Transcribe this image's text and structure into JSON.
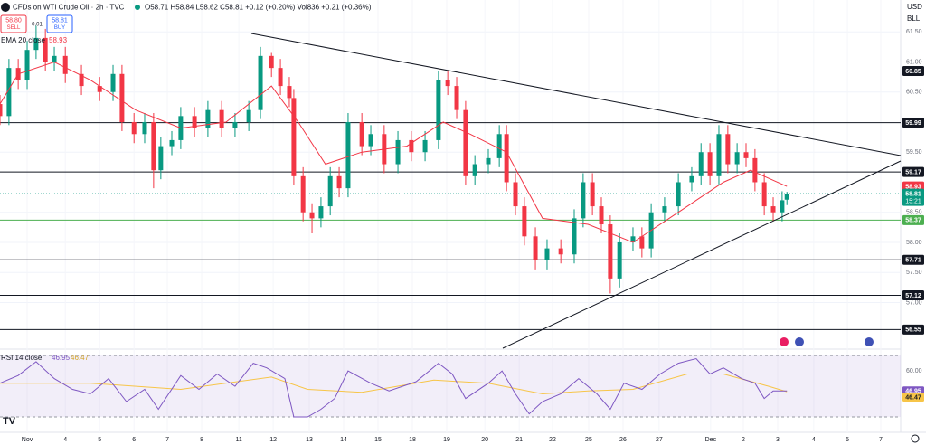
{
  "chart_data": {
    "type": "candlestick",
    "title": "CFDs on WTI Crude Oil · 2h · TVC",
    "ohlc_text": "O58.71 H58.84 L58.62 C58.81 +0.12 (+0.20%) Vol836 +0.21 (+0.36%)",
    "sell": {
      "price": "58.80",
      "label": "SELL"
    },
    "spread": "0.01",
    "buy": {
      "price": "58.81",
      "label": "BUY"
    },
    "currency": "USD",
    "unit": "BLL",
    "countdown": "15:21",
    "up_color": "#089981",
    "down_color": "#f23645",
    "candles": [
      [
        -0.79,
        60.3,
        60.45,
        59.95,
        60.1
      ],
      [
        -0.53,
        60.1,
        61.05,
        59.95,
        60.9
      ],
      [
        -0.26,
        60.9,
        61.05,
        60.55,
        60.7
      ],
      [
        0,
        60.7,
        61.35,
        60.55,
        61.2
      ],
      [
        0.26,
        61.2,
        61.6,
        61.05,
        61.4
      ],
      [
        0.53,
        61.4,
        61.55,
        60.85,
        61.0
      ],
      [
        0.79,
        61.0,
        61.25,
        60.85,
        61.1
      ],
      [
        1.11,
        61.1,
        61.25,
        60.65,
        60.8
      ],
      [
        1.58,
        60.8,
        60.95,
        60.45,
        60.6
      ],
      [
        2.11,
        60.6,
        60.75,
        60.35,
        60.5
      ],
      [
        2.5,
        60.5,
        60.95,
        60.35,
        60.8
      ],
      [
        2.76,
        60.8,
        60.95,
        59.85,
        60.0
      ],
      [
        3.11,
        60.0,
        60.15,
        59.65,
        59.8
      ],
      [
        3.42,
        59.8,
        60.15,
        59.65,
        60.0
      ],
      [
        3.68,
        60.0,
        60.15,
        58.9,
        59.2
      ],
      [
        3.89,
        59.2,
        59.75,
        59.05,
        59.6
      ],
      [
        4.21,
        59.6,
        59.85,
        59.45,
        59.7
      ],
      [
        4.47,
        59.7,
        60.25,
        59.55,
        60.1
      ],
      [
        4.87,
        60.1,
        60.25,
        59.75,
        59.9
      ],
      [
        5.26,
        59.9,
        60.35,
        59.75,
        60.2
      ],
      [
        5.66,
        60.2,
        60.35,
        59.75,
        59.9
      ],
      [
        6.05,
        59.9,
        60.15,
        59.75,
        60.0
      ],
      [
        6.45,
        60.0,
        60.35,
        59.85,
        60.2
      ],
      [
        6.79,
        60.2,
        61.25,
        60.05,
        61.1
      ],
      [
        7.11,
        61.1,
        61.15,
        60.75,
        60.9
      ],
      [
        7.37,
        60.9,
        61.05,
        60.45,
        60.6
      ],
      [
        7.63,
        60.6,
        60.75,
        60.25,
        60.4
      ],
      [
        7.76,
        60.4,
        60.55,
        58.95,
        59.1
      ],
      [
        8.03,
        59.1,
        59.25,
        58.35,
        58.5
      ],
      [
        8.29,
        58.5,
        58.65,
        58.15,
        58.4
      ],
      [
        8.55,
        58.4,
        58.75,
        58.25,
        58.6
      ],
      [
        8.82,
        58.6,
        59.25,
        58.45,
        59.1
      ],
      [
        9.08,
        59.1,
        59.25,
        58.75,
        58.9
      ],
      [
        9.34,
        58.9,
        60.15,
        58.75,
        60.0
      ],
      [
        9.74,
        60.0,
        60.15,
        59.45,
        59.6
      ],
      [
        10.0,
        59.6,
        59.95,
        59.45,
        59.8
      ],
      [
        10.39,
        59.8,
        59.95,
        59.15,
        59.3
      ],
      [
        10.79,
        59.3,
        59.85,
        59.15,
        59.7
      ],
      [
        11.18,
        59.7,
        59.85,
        59.35,
        59.5
      ],
      [
        11.58,
        59.5,
        59.85,
        59.35,
        59.7
      ],
      [
        11.97,
        59.7,
        60.85,
        59.55,
        60.7
      ],
      [
        12.24,
        60.7,
        60.85,
        60.45,
        60.6
      ],
      [
        12.5,
        60.6,
        60.75,
        60.05,
        60.2
      ],
      [
        12.76,
        60.2,
        60.35,
        58.95,
        59.1
      ],
      [
        13.03,
        59.1,
        59.45,
        58.95,
        59.3
      ],
      [
        13.42,
        59.3,
        59.55,
        59.15,
        59.4
      ],
      [
        13.74,
        59.4,
        59.95,
        59.25,
        59.8
      ],
      [
        13.95,
        59.8,
        59.95,
        58.85,
        59.0
      ],
      [
        14.21,
        59.0,
        59.15,
        58.45,
        58.6
      ],
      [
        14.47,
        58.6,
        58.75,
        57.95,
        58.1
      ],
      [
        14.79,
        58.1,
        58.25,
        57.55,
        57.7
      ],
      [
        15.13,
        57.7,
        58.05,
        57.55,
        57.9
      ],
      [
        15.53,
        57.9,
        58.05,
        57.65,
        57.8
      ],
      [
        15.92,
        57.8,
        58.55,
        57.65,
        58.4
      ],
      [
        16.18,
        58.4,
        59.15,
        58.25,
        59.0
      ],
      [
        16.45,
        59.0,
        59.15,
        58.45,
        58.6
      ],
      [
        16.71,
        58.6,
        58.75,
        58.15,
        58.3
      ],
      [
        16.97,
        58.3,
        58.45,
        57.15,
        57.4
      ],
      [
        17.24,
        57.4,
        58.15,
        57.25,
        58.0
      ],
      [
        17.63,
        58.0,
        58.25,
        57.85,
        58.1
      ],
      [
        17.89,
        58.1,
        58.25,
        57.75,
        57.9
      ],
      [
        18.16,
        57.9,
        58.65,
        57.75,
        58.5
      ],
      [
        18.55,
        58.5,
        58.75,
        58.35,
        58.6
      ],
      [
        18.95,
        58.6,
        59.15,
        58.45,
        59.0
      ],
      [
        19.34,
        59.0,
        59.25,
        58.85,
        59.1
      ],
      [
        19.61,
        59.1,
        59.65,
        58.95,
        59.5
      ],
      [
        19.87,
        59.5,
        59.65,
        58.95,
        59.1
      ],
      [
        20.13,
        59.1,
        59.95,
        58.95,
        59.8
      ],
      [
        20.39,
        59.8,
        59.95,
        59.15,
        59.3
      ],
      [
        20.66,
        59.3,
        59.65,
        59.15,
        59.5
      ],
      [
        20.92,
        59.5,
        59.65,
        59.25,
        59.4
      ],
      [
        21.18,
        59.4,
        59.55,
        58.85,
        59.0
      ],
      [
        21.45,
        59.0,
        59.15,
        58.45,
        58.6
      ],
      [
        21.71,
        58.6,
        58.75,
        58.35,
        58.5
      ],
      [
        21.97,
        58.5,
        58.85,
        58.35,
        58.7
      ],
      [
        22.11,
        58.71,
        58.84,
        58.62,
        58.81
      ]
    ],
    "ema": {
      "name": "EMA 20 close",
      "color": "#f23645",
      "x": [
        -0.79,
        -0.26,
        0.79,
        1.84,
        3.16,
        4.47,
        5.79,
        7.11,
        7.89,
        8.68,
        9.74,
        11.05,
        12.11,
        12.89,
        13.95,
        15.0,
        16.32,
        17.63,
        18.95,
        20.26,
        21.05,
        22.11
      ],
      "values": [
        60.3,
        60.8,
        61.0,
        60.7,
        60.2,
        59.9,
        60.0,
        60.6,
        60.0,
        59.3,
        59.5,
        59.6,
        60.0,
        59.8,
        59.5,
        58.4,
        58.3,
        58.0,
        58.5,
        59.0,
        59.2,
        58.93
      ]
    },
    "levels": {
      "color": "#131722",
      "values": [
        60.85,
        59.99,
        59.17,
        57.71,
        57.12,
        56.55
      ]
    },
    "support": {
      "color": "#4caf50",
      "value": 58.37
    },
    "ylim": [
      56.24,
      62.03
    ],
    "yticks": [
      {
        "value": 61.5,
        "label": "61.50"
      },
      {
        "value": 61,
        "label": "61.00"
      },
      {
        "value": 60.5,
        "label": "60.50"
      },
      {
        "value": 59.5,
        "label": "59.50"
      },
      {
        "value": 58.5,
        "label": "58.50"
      },
      {
        "value": 58,
        "label": "58.00"
      },
      {
        "value": 57.5,
        "label": "57.50"
      },
      {
        "value": 57,
        "label": "57.00"
      }
    ],
    "xlim": [
      -0.79,
      25.42
    ],
    "xticks": [
      {
        "value": 0,
        "label": "Nov"
      },
      {
        "value": 1.11,
        "label": "4"
      },
      {
        "value": 2.11,
        "label": "5"
      },
      {
        "value": 3.11,
        "label": "6"
      },
      {
        "value": 4.08,
        "label": "7"
      },
      {
        "value": 5.08,
        "label": "8"
      },
      {
        "value": 6.16,
        "label": "11"
      },
      {
        "value": 7.16,
        "label": "12"
      },
      {
        "value": 8.21,
        "label": "13"
      },
      {
        "value": 9.21,
        "label": "14"
      },
      {
        "value": 10.21,
        "label": "15"
      },
      {
        "value": 11.21,
        "label": "18"
      },
      {
        "value": 12.21,
        "label": "19"
      },
      {
        "value": 13.32,
        "label": "20"
      },
      {
        "value": 14.32,
        "label": "21"
      },
      {
        "value": 15.29,
        "label": "22"
      },
      {
        "value": 16.34,
        "label": "25"
      },
      {
        "value": 17.34,
        "label": "26"
      },
      {
        "value": 18.39,
        "label": "27"
      },
      {
        "value": 19.89,
        "label": "Dec"
      },
      {
        "value": 20.84,
        "label": "2"
      },
      {
        "value": 21.84,
        "label": "3"
      },
      {
        "value": 22.89,
        "label": "4"
      },
      {
        "value": 23.87,
        "label": "5"
      },
      {
        "value": 24.84,
        "label": "7"
      }
    ],
    "rsi": {
      "name": "RSI 14 close",
      "color": "#7e57c2",
      "x": [
        -0.79,
        -0.26,
        0.26,
        0.79,
        1.32,
        1.84,
        2.37,
        2.89,
        3.42,
        3.82,
        4.47,
        5,
        5.53,
        6.05,
        6.58,
        6.97,
        7.5,
        7.76,
        8.16,
        8.55,
        8.95,
        9.34,
        10,
        10.53,
        11.32,
        11.97,
        12.37,
        12.76,
        13.42,
        13.82,
        14.21,
        14.61,
        15,
        15.53,
        16.05,
        16.58,
        16.97,
        17.37,
        17.89,
        18.42,
        18.95,
        19.47,
        19.87,
        20.26,
        20.79,
        21.18,
        21.45,
        21.71,
        22.11
      ],
      "values": [
        52,
        57,
        66,
        55,
        48,
        45,
        55,
        40,
        48,
        35,
        57,
        48,
        58,
        50,
        65,
        62,
        55,
        30,
        30,
        35,
        42,
        60,
        52,
        47,
        53,
        65,
        58,
        42,
        52,
        60,
        45,
        32,
        40,
        45,
        55,
        45,
        35,
        52,
        48,
        58,
        65,
        68,
        58,
        62,
        55,
        52,
        42,
        47,
        46.95
      ],
      "ma": {
        "color": "#f7c548",
        "x": [
          -0.79,
          1.84,
          4.47,
          7.11,
          8.16,
          9.74,
          11.84,
          13.42,
          15,
          16.32,
          17.63,
          19.21,
          20.26,
          21.58,
          22.11
        ],
        "values": [
          52,
          52,
          48,
          56,
          48,
          46,
          54,
          52,
          45,
          47,
          48,
          58,
          58,
          50,
          46.47
        ]
      },
      "ylim": [
        20,
        73
      ],
      "band": [
        30,
        70
      ],
      "yticks": [
        {
          "value": 60,
          "label": "60.00"
        }
      ]
    }
  }
}
